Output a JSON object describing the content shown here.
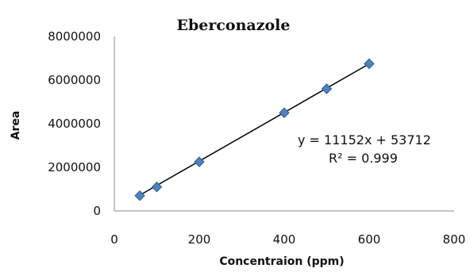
{
  "chart_data": {
    "type": "scatter",
    "title": "Eberconazole",
    "xlabel": "Concentraion (ppm)",
    "ylabel": "Area",
    "xlim": [
      0,
      800
    ],
    "ylim": [
      0,
      8000000
    ],
    "xticks": [
      0,
      200,
      400,
      600,
      800
    ],
    "yticks": [
      0,
      2000000,
      4000000,
      6000000,
      8000000
    ],
    "grid": false,
    "legend": "none",
    "series": [
      {
        "x": [
          60,
          100,
          200,
          400,
          500,
          600
        ],
        "y": [
          700000,
          1100000,
          2250000,
          4500000,
          5600000,
          6750000
        ],
        "marker": "diamond",
        "color": "#4f81bd"
      }
    ],
    "trendline": {
      "type": "linear",
      "slope": 11152,
      "intercept": 53712,
      "x_range": [
        60,
        600
      ],
      "color": "#000000",
      "equation_text": "y = 11152x + 53712",
      "r2_text": "R² = 0.999"
    }
  }
}
